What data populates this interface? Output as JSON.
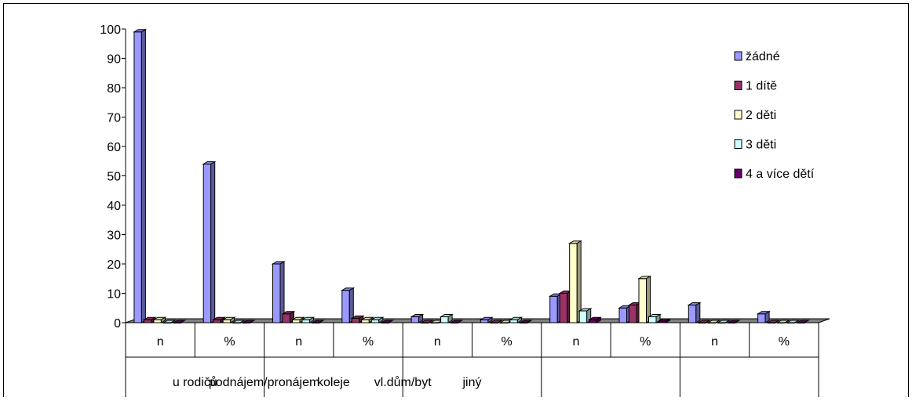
{
  "chart_data": {
    "type": "bar",
    "title": "",
    "xlabel": "",
    "ylabel": "",
    "ylim": [
      0,
      100
    ],
    "yticks": [
      0,
      10,
      20,
      30,
      40,
      50,
      60,
      70,
      80,
      90,
      100
    ],
    "three_d": true,
    "legend_position": "top-right",
    "groups": [
      "u rodičů",
      "podnájem/pronájem",
      "koleje",
      "vl.dům/byt",
      "jiný"
    ],
    "subcategories": [
      "n",
      "%"
    ],
    "categories": [
      "n",
      "%",
      "n",
      "%",
      "n",
      "%",
      "n",
      "%",
      "n",
      "%"
    ],
    "series": [
      {
        "name": "žádné",
        "color": "#9999ff",
        "values": [
          99,
          54,
          20,
          11,
          2,
          1,
          9,
          5,
          6,
          3
        ]
      },
      {
        "name": "1 dítě",
        "color": "#993366",
        "values": [
          1,
          1,
          3,
          1.5,
          0,
          0,
          10,
          6,
          0,
          0
        ]
      },
      {
        "name": "2 děti",
        "color": "#ffffcc",
        "values": [
          1,
          1,
          1,
          1,
          0,
          0,
          27,
          15,
          0,
          0
        ]
      },
      {
        "name": "3 děti",
        "color": "#ccffff",
        "values": [
          0,
          0,
          1,
          1,
          2,
          1,
          4,
          2,
          0,
          0
        ]
      },
      {
        "name": "4 a více dětí",
        "color": "#660066",
        "values": [
          0,
          0,
          0,
          0,
          0,
          0,
          1,
          0.5,
          0,
          0
        ]
      }
    ]
  }
}
